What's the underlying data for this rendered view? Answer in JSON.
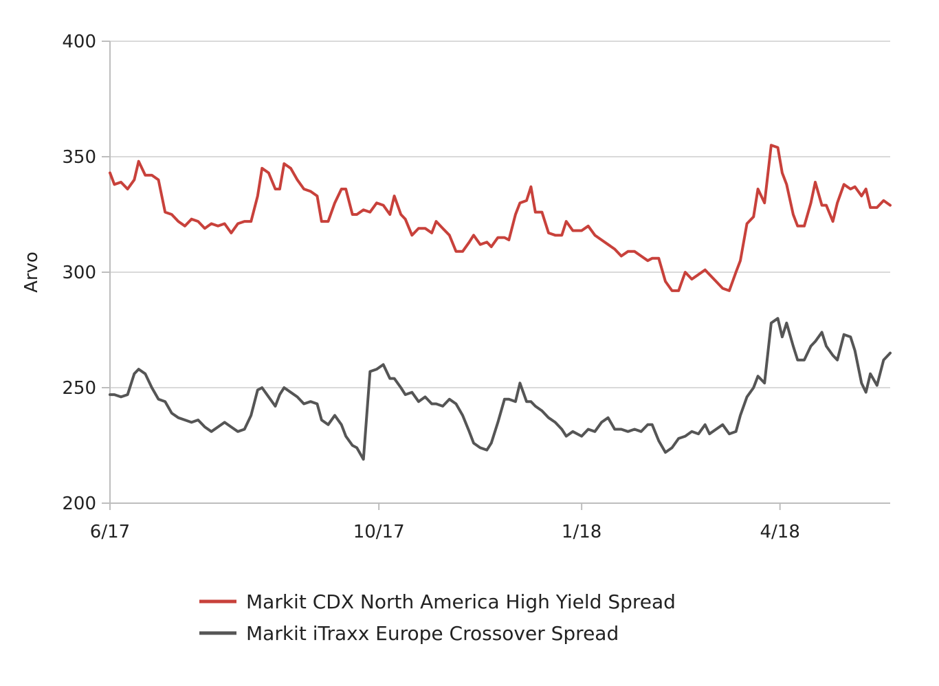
{
  "chart_data": {
    "type": "line",
    "title": "",
    "xlabel": "",
    "ylabel": "Arvo",
    "ylim": [
      200,
      400
    ],
    "yticks": [
      200,
      250,
      300,
      350,
      400
    ],
    "xlim": [
      "2017-06-01",
      "2018-05-21"
    ],
    "xticks": [
      {
        "date": "2017-06-01",
        "label": "6/17"
      },
      {
        "date": "2017-10-01",
        "label": "10/17"
      },
      {
        "date": "2018-01-01",
        "label": "1/18"
      },
      {
        "date": "2018-04-01",
        "label": "4/18"
      }
    ],
    "grid": "horizontal",
    "legend": "bottom",
    "series": [
      {
        "name": "Markit CDX North America High Yield Spread",
        "color": "#c8413b",
        "points": [
          [
            "2017-06-01",
            343
          ],
          [
            "2017-06-03",
            338
          ],
          [
            "2017-06-06",
            339
          ],
          [
            "2017-06-09",
            336
          ],
          [
            "2017-06-12",
            340
          ],
          [
            "2017-06-14",
            348
          ],
          [
            "2017-06-17",
            342
          ],
          [
            "2017-06-20",
            342
          ],
          [
            "2017-06-23",
            340
          ],
          [
            "2017-06-26",
            326
          ],
          [
            "2017-06-29",
            325
          ],
          [
            "2017-07-02",
            322
          ],
          [
            "2017-07-05",
            320
          ],
          [
            "2017-07-08",
            323
          ],
          [
            "2017-07-11",
            322
          ],
          [
            "2017-07-14",
            319
          ],
          [
            "2017-07-17",
            321
          ],
          [
            "2017-07-20",
            320
          ],
          [
            "2017-07-23",
            321
          ],
          [
            "2017-07-26",
            317
          ],
          [
            "2017-07-29",
            321
          ],
          [
            "2017-08-01",
            322
          ],
          [
            "2017-08-04",
            322
          ],
          [
            "2017-08-07",
            333
          ],
          [
            "2017-08-09",
            345
          ],
          [
            "2017-08-12",
            343
          ],
          [
            "2017-08-15",
            336
          ],
          [
            "2017-08-17",
            336
          ],
          [
            "2017-08-19",
            347
          ],
          [
            "2017-08-22",
            345
          ],
          [
            "2017-08-25",
            340
          ],
          [
            "2017-08-28",
            336
          ],
          [
            "2017-08-31",
            335
          ],
          [
            "2017-09-03",
            333
          ],
          [
            "2017-09-05",
            322
          ],
          [
            "2017-09-08",
            322
          ],
          [
            "2017-09-11",
            330
          ],
          [
            "2017-09-14",
            336
          ],
          [
            "2017-09-16",
            336
          ],
          [
            "2017-09-19",
            325
          ],
          [
            "2017-09-21",
            325
          ],
          [
            "2017-09-24",
            327
          ],
          [
            "2017-09-27",
            326
          ],
          [
            "2017-09-30",
            330
          ],
          [
            "2017-10-03",
            329
          ],
          [
            "2017-10-06",
            325
          ],
          [
            "2017-10-08",
            333
          ],
          [
            "2017-10-11",
            325
          ],
          [
            "2017-10-13",
            323
          ],
          [
            "2017-10-16",
            316
          ],
          [
            "2017-10-19",
            319
          ],
          [
            "2017-10-22",
            319
          ],
          [
            "2017-10-25",
            317
          ],
          [
            "2017-10-27",
            322
          ],
          [
            "2017-10-30",
            319
          ],
          [
            "2017-11-02",
            316
          ],
          [
            "2017-11-05",
            309
          ],
          [
            "2017-11-08",
            309
          ],
          [
            "2017-11-11",
            313
          ],
          [
            "2017-11-13",
            316
          ],
          [
            "2017-11-16",
            312
          ],
          [
            "2017-11-19",
            313
          ],
          [
            "2017-11-21",
            311
          ],
          [
            "2017-11-24",
            315
          ],
          [
            "2017-11-27",
            315
          ],
          [
            "2017-11-29",
            314
          ],
          [
            "2017-12-02",
            325
          ],
          [
            "2017-12-04",
            330
          ],
          [
            "2017-12-07",
            331
          ],
          [
            "2017-12-09",
            337
          ],
          [
            "2017-12-11",
            326
          ],
          [
            "2017-12-14",
            326
          ],
          [
            "2017-12-17",
            317
          ],
          [
            "2017-12-20",
            316
          ],
          [
            "2017-12-23",
            316
          ],
          [
            "2017-12-25",
            322
          ],
          [
            "2017-12-28",
            318
          ],
          [
            "2018-01-01",
            318
          ],
          [
            "2018-01-04",
            320
          ],
          [
            "2018-01-07",
            316
          ],
          [
            "2018-01-10",
            314
          ],
          [
            "2018-01-13",
            312
          ],
          [
            "2018-01-16",
            310
          ],
          [
            "2018-01-19",
            307
          ],
          [
            "2018-01-22",
            309
          ],
          [
            "2018-01-25",
            309
          ],
          [
            "2018-01-28",
            307
          ],
          [
            "2018-01-31",
            305
          ],
          [
            "2018-02-02",
            306
          ],
          [
            "2018-02-05",
            306
          ],
          [
            "2018-02-08",
            296
          ],
          [
            "2018-02-11",
            292
          ],
          [
            "2018-02-14",
            292
          ],
          [
            "2018-02-17",
            300
          ],
          [
            "2018-02-20",
            297
          ],
          [
            "2018-02-23",
            299
          ],
          [
            "2018-02-26",
            301
          ],
          [
            "2018-02-28",
            299
          ],
          [
            "2018-03-03",
            296
          ],
          [
            "2018-03-06",
            293
          ],
          [
            "2018-03-09",
            292
          ],
          [
            "2018-03-12",
            300
          ],
          [
            "2018-03-14",
            305
          ],
          [
            "2018-03-17",
            321
          ],
          [
            "2018-03-20",
            324
          ],
          [
            "2018-03-22",
            336
          ],
          [
            "2018-03-25",
            330
          ],
          [
            "2018-03-28",
            355
          ],
          [
            "2018-03-31",
            354
          ],
          [
            "2018-04-02",
            343
          ],
          [
            "2018-04-04",
            338
          ],
          [
            "2018-04-07",
            325
          ],
          [
            "2018-04-09",
            320
          ],
          [
            "2018-04-12",
            320
          ],
          [
            "2018-04-15",
            330
          ],
          [
            "2018-04-17",
            339
          ],
          [
            "2018-04-20",
            329
          ],
          [
            "2018-04-22",
            329
          ],
          [
            "2018-04-25",
            322
          ],
          [
            "2018-04-27",
            330
          ],
          [
            "2018-04-30",
            338
          ],
          [
            "2018-05-03",
            336
          ],
          [
            "2018-05-05",
            337
          ],
          [
            "2018-05-08",
            333
          ],
          [
            "2018-05-10",
            336
          ],
          [
            "2018-05-12",
            328
          ],
          [
            "2018-05-15",
            328
          ],
          [
            "2018-05-18",
            331
          ],
          [
            "2018-05-21",
            329
          ]
        ]
      },
      {
        "name": "Markit iTraxx Europe Crossover Spread",
        "color": "#555555",
        "points": [
          [
            "2017-06-01",
            247
          ],
          [
            "2017-06-03",
            247
          ],
          [
            "2017-06-06",
            246
          ],
          [
            "2017-06-09",
            247
          ],
          [
            "2017-06-12",
            256
          ],
          [
            "2017-06-14",
            258
          ],
          [
            "2017-06-17",
            256
          ],
          [
            "2017-06-20",
            250
          ],
          [
            "2017-06-23",
            245
          ],
          [
            "2017-06-26",
            244
          ],
          [
            "2017-06-29",
            239
          ],
          [
            "2017-07-02",
            237
          ],
          [
            "2017-07-05",
            236
          ],
          [
            "2017-07-08",
            235
          ],
          [
            "2017-07-11",
            236
          ],
          [
            "2017-07-14",
            233
          ],
          [
            "2017-07-17",
            231
          ],
          [
            "2017-07-20",
            233
          ],
          [
            "2017-07-23",
            235
          ],
          [
            "2017-07-26",
            233
          ],
          [
            "2017-07-29",
            231
          ],
          [
            "2017-08-01",
            232
          ],
          [
            "2017-08-04",
            238
          ],
          [
            "2017-08-07",
            249
          ],
          [
            "2017-08-09",
            250
          ],
          [
            "2017-08-12",
            246
          ],
          [
            "2017-08-15",
            242
          ],
          [
            "2017-08-17",
            247
          ],
          [
            "2017-08-19",
            250
          ],
          [
            "2017-08-22",
            248
          ],
          [
            "2017-08-25",
            246
          ],
          [
            "2017-08-28",
            243
          ],
          [
            "2017-08-31",
            244
          ],
          [
            "2017-09-03",
            243
          ],
          [
            "2017-09-05",
            236
          ],
          [
            "2017-09-08",
            234
          ],
          [
            "2017-09-11",
            238
          ],
          [
            "2017-09-14",
            234
          ],
          [
            "2017-09-16",
            229
          ],
          [
            "2017-09-19",
            225
          ],
          [
            "2017-09-21",
            224
          ],
          [
            "2017-09-24",
            219
          ],
          [
            "2017-09-27",
            257
          ],
          [
            "2017-09-30",
            258
          ],
          [
            "2017-10-03",
            260
          ],
          [
            "2017-10-06",
            254
          ],
          [
            "2017-10-08",
            254
          ],
          [
            "2017-10-11",
            250
          ],
          [
            "2017-10-13",
            247
          ],
          [
            "2017-10-16",
            248
          ],
          [
            "2017-10-19",
            244
          ],
          [
            "2017-10-22",
            246
          ],
          [
            "2017-10-25",
            243
          ],
          [
            "2017-10-27",
            243
          ],
          [
            "2017-10-30",
            242
          ],
          [
            "2017-11-02",
            245
          ],
          [
            "2017-11-05",
            243
          ],
          [
            "2017-11-08",
            238
          ],
          [
            "2017-11-11",
            231
          ],
          [
            "2017-11-13",
            226
          ],
          [
            "2017-11-16",
            224
          ],
          [
            "2017-11-19",
            223
          ],
          [
            "2017-11-21",
            226
          ],
          [
            "2017-11-24",
            235
          ],
          [
            "2017-11-27",
            245
          ],
          [
            "2017-11-29",
            245
          ],
          [
            "2017-12-02",
            244
          ],
          [
            "2017-12-04",
            252
          ],
          [
            "2017-12-07",
            244
          ],
          [
            "2017-12-09",
            244
          ],
          [
            "2017-12-11",
            242
          ],
          [
            "2017-12-14",
            240
          ],
          [
            "2017-12-17",
            237
          ],
          [
            "2017-12-20",
            235
          ],
          [
            "2017-12-23",
            232
          ],
          [
            "2017-12-25",
            229
          ],
          [
            "2017-12-28",
            231
          ],
          [
            "2018-01-01",
            229
          ],
          [
            "2018-01-04",
            232
          ],
          [
            "2018-01-07",
            231
          ],
          [
            "2018-01-10",
            235
          ],
          [
            "2018-01-13",
            237
          ],
          [
            "2018-01-16",
            232
          ],
          [
            "2018-01-19",
            232
          ],
          [
            "2018-01-22",
            231
          ],
          [
            "2018-01-25",
            232
          ],
          [
            "2018-01-28",
            231
          ],
          [
            "2018-01-31",
            234
          ],
          [
            "2018-02-02",
            234
          ],
          [
            "2018-02-05",
            227
          ],
          [
            "2018-02-08",
            222
          ],
          [
            "2018-02-11",
            224
          ],
          [
            "2018-02-14",
            228
          ],
          [
            "2018-02-17",
            229
          ],
          [
            "2018-02-20",
            231
          ],
          [
            "2018-02-23",
            230
          ],
          [
            "2018-02-26",
            234
          ],
          [
            "2018-02-28",
            230
          ],
          [
            "2018-03-03",
            232
          ],
          [
            "2018-03-06",
            234
          ],
          [
            "2018-03-09",
            230
          ],
          [
            "2018-03-12",
            231
          ],
          [
            "2018-03-14",
            238
          ],
          [
            "2018-03-17",
            246
          ],
          [
            "2018-03-20",
            250
          ],
          [
            "2018-03-22",
            255
          ],
          [
            "2018-03-25",
            252
          ],
          [
            "2018-03-28",
            278
          ],
          [
            "2018-03-31",
            280
          ],
          [
            "2018-04-02",
            272
          ],
          [
            "2018-04-04",
            278
          ],
          [
            "2018-04-07",
            268
          ],
          [
            "2018-04-09",
            262
          ],
          [
            "2018-04-12",
            262
          ],
          [
            "2018-04-15",
            268
          ],
          [
            "2018-04-17",
            270
          ],
          [
            "2018-04-20",
            274
          ],
          [
            "2018-04-22",
            268
          ],
          [
            "2018-04-25",
            264
          ],
          [
            "2018-04-27",
            262
          ],
          [
            "2018-04-30",
            273
          ],
          [
            "2018-05-03",
            272
          ],
          [
            "2018-05-05",
            266
          ],
          [
            "2018-05-08",
            252
          ],
          [
            "2018-05-10",
            248
          ],
          [
            "2018-05-12",
            256
          ],
          [
            "2018-05-15",
            251
          ],
          [
            "2018-05-18",
            262
          ],
          [
            "2018-05-21",
            265
          ]
        ]
      }
    ]
  }
}
